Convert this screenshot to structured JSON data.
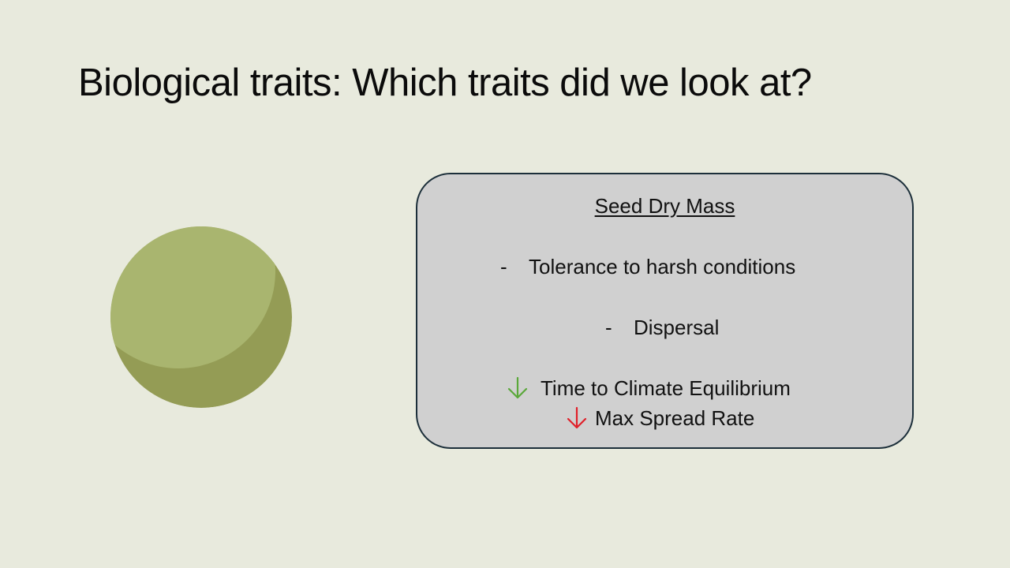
{
  "slide": {
    "title": "Biological traits: Which traits did we look at?"
  },
  "trait_box": {
    "heading": "Seed Dry Mass",
    "bullets": [
      {
        "marker": "-",
        "text": "Tolerance to harsh conditions"
      },
      {
        "marker": "-",
        "text": "Dispersal"
      }
    ],
    "effects": [
      {
        "icon": "down-arrow-icon",
        "color": "#5aa83a",
        "text": "Time to Climate Equilibrium"
      },
      {
        "icon": "down-arrow-icon",
        "color": "#e0202a",
        "text": "Max Spread Rate"
      }
    ]
  },
  "colors": {
    "background": "#e8eadd",
    "seed_light": "#a9b56f",
    "seed_dark": "#949c55",
    "box_fill": "#d0d0d0",
    "box_border": "#1c2f3a"
  }
}
